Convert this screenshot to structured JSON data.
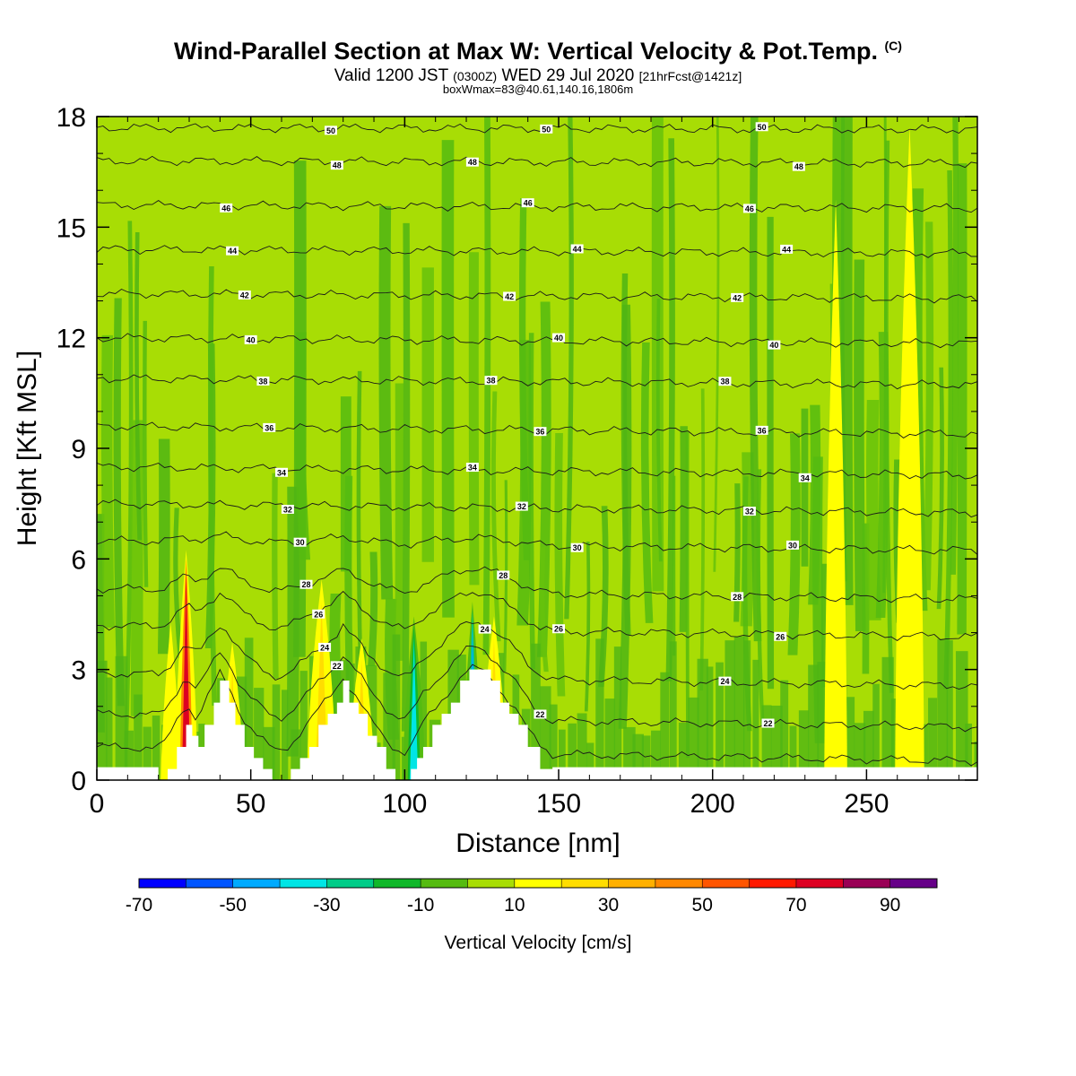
{
  "title": {
    "main": "Wind-Parallel Section at Max W: Vertical Velocity & Pot.Temp.",
    "copyright": "(C)",
    "valid_prefix": "Valid 1200 JST",
    "valid_z": "(0300Z)",
    "valid_date": "WED 29 Jul 2020",
    "fcst": "[21hrFcst@1421z]",
    "box": "boxWmax=83@40.61,140.16,1806m"
  },
  "chart_data": {
    "type": "heatmap",
    "xlabel": "Distance [nm]",
    "ylabel": "Height [Kft MSL]",
    "xlim": [
      0,
      286
    ],
    "ylim": [
      0,
      18
    ],
    "xticks": [
      0,
      50,
      100,
      150,
      200,
      250
    ],
    "yticks": [
      0,
      3,
      6,
      9,
      12,
      15,
      18
    ],
    "colorbar": {
      "label": "Vertical Velocity [cm/s]",
      "levels": [
        -70,
        -60,
        -50,
        -40,
        -30,
        -20,
        -10,
        0,
        10,
        20,
        30,
        40,
        50,
        60,
        70,
        80,
        90,
        100
      ],
      "tick_labels": [
        -70,
        -50,
        -30,
        -10,
        10,
        30,
        50,
        70,
        90
      ],
      "colors": [
        "#0000ff",
        "#0055ff",
        "#00aaff",
        "#00e5e5",
        "#00cc88",
        "#10b82a",
        "#55bb10",
        "#a8dd05",
        "#ffff00",
        "#ffdd00",
        "#ffb000",
        "#ff8800",
        "#ff5500",
        "#ff1a00",
        "#dd0022",
        "#990055",
        "#660088"
      ]
    },
    "background_field": "#a8dd05",
    "updraft_streaks": [
      {
        "x": 24,
        "y_top": 4.0,
        "w": 3,
        "level": 10
      },
      {
        "x": 29,
        "y_top": 6.0,
        "w": 4,
        "level": 70
      },
      {
        "x": 44,
        "y_top": 3.5,
        "w": 4,
        "level": 20
      },
      {
        "x": 73,
        "y_top": 5.2,
        "w": 6,
        "level": 20
      },
      {
        "x": 86,
        "y_top": 3.6,
        "w": 5,
        "level": 20
      },
      {
        "x": 129,
        "y_top": 4.2,
        "w": 5,
        "level": 20
      },
      {
        "x": 240,
        "y_top": 15.5,
        "w": 4,
        "level": 10
      },
      {
        "x": 264,
        "y_top": 17.5,
        "w": 6,
        "level": 10
      }
    ],
    "downdraft_streaks": [
      {
        "x": 103,
        "y_top": 4.2,
        "w": 4,
        "level": -40
      },
      {
        "x": 122,
        "y_top": 4.6,
        "w": 3,
        "level": -50
      }
    ],
    "terrain": [
      [
        20,
        0
      ],
      [
        23,
        0.3
      ],
      [
        26,
        1.0
      ],
      [
        29,
        1.6
      ],
      [
        31,
        1.2
      ],
      [
        33,
        1.0
      ],
      [
        35,
        1.6
      ],
      [
        38,
        2.2
      ],
      [
        40,
        2.6
      ],
      [
        43,
        2.2
      ],
      [
        45,
        1.6
      ],
      [
        48,
        1.0
      ],
      [
        51,
        0.6
      ],
      [
        54,
        0.3
      ],
      [
        57,
        0
      ],
      [
        60,
        0
      ],
      [
        63,
        0.2
      ],
      [
        66,
        0.6
      ],
      [
        69,
        1.0
      ],
      [
        72,
        1.4
      ],
      [
        75,
        1.8
      ],
      [
        78,
        2.2
      ],
      [
        80,
        2.6
      ],
      [
        82,
        2.2
      ],
      [
        85,
        1.8
      ],
      [
        88,
        1.2
      ],
      [
        91,
        0.8
      ],
      [
        94,
        0.4
      ],
      [
        97,
        0.1
      ],
      [
        100,
        0
      ],
      [
        102,
        0.2
      ],
      [
        104,
        0.6
      ],
      [
        106,
        1.0
      ],
      [
        109,
        1.4
      ],
      [
        112,
        1.8
      ],
      [
        115,
        2.2
      ],
      [
        118,
        2.6
      ],
      [
        121,
        2.9
      ],
      [
        125,
        2.9
      ],
      [
        128,
        2.6
      ],
      [
        131,
        2.2
      ],
      [
        134,
        1.8
      ],
      [
        137,
        1.4
      ],
      [
        140,
        0.8
      ],
      [
        144,
        0.3
      ],
      [
        148,
        0
      ]
    ],
    "theta_contours": [
      {
        "y": 0.9,
        "label": ""
      },
      {
        "y": 1.8,
        "label": "22"
      },
      {
        "y": 2.9,
        "label": "24"
      },
      {
        "y": 4.2,
        "label": "26"
      },
      {
        "y": 5.2,
        "label": "28"
      },
      {
        "y": 6.5,
        "label": "30"
      },
      {
        "y": 7.5,
        "label": "32"
      },
      {
        "y": 8.5,
        "label": "34"
      },
      {
        "y": 9.6,
        "label": "36"
      },
      {
        "y": 10.9,
        "label": "38"
      },
      {
        "y": 12.0,
        "label": "40"
      },
      {
        "y": 13.2,
        "label": "42"
      },
      {
        "y": 14.4,
        "label": "44"
      },
      {
        "y": 15.6,
        "label": "46"
      },
      {
        "y": 16.8,
        "label": "48"
      },
      {
        "y": 17.7,
        "label": "50"
      }
    ]
  }
}
